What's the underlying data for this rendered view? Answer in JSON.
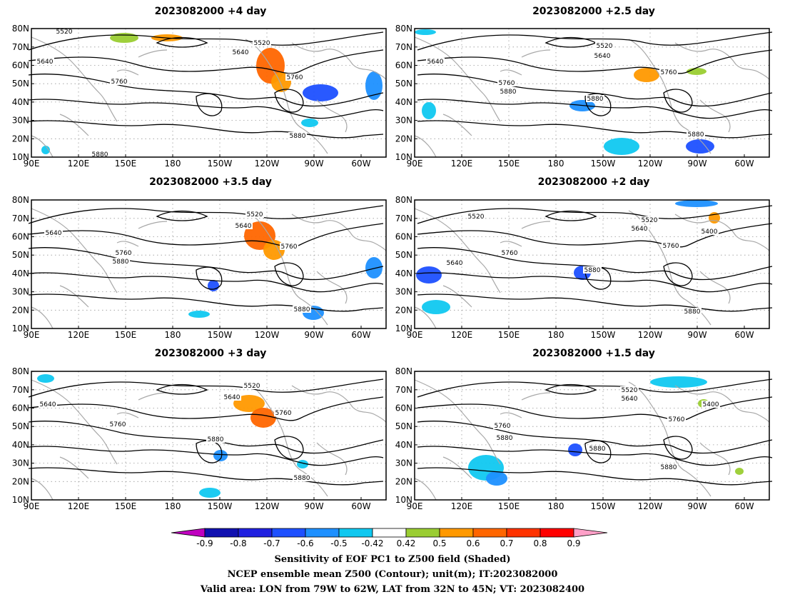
{
  "panels": [
    {
      "id": "p1",
      "title": "2023082000  +4 day"
    },
    {
      "id": "p2",
      "title": "2023082000  +2.5  day"
    },
    {
      "id": "p3",
      "title": "2023082000  +3.5  day"
    },
    {
      "id": "p4",
      "title": "2023082000  +2  day"
    },
    {
      "id": "p5",
      "title": "2023082000  +3  day"
    },
    {
      "id": "p6",
      "title": "2023082000  +1.5  day"
    }
  ],
  "lon_ticks": [
    "90E",
    "120E",
    "150E",
    "180",
    "150W",
    "120W",
    "90W",
    "60W"
  ],
  "lat_ticks": [
    "10N",
    "20N",
    "30N",
    "40N",
    "50N",
    "60N",
    "70N",
    "80N"
  ],
  "contour_labels": {
    "p1": [
      "5520",
      "5640",
      "5640",
      "5520",
      "5760",
      "5760",
      "5880",
      "5880"
    ],
    "p2": [
      "5640",
      "5520",
      "5640",
      "5760",
      "5880",
      "5760",
      "5880",
      "5880"
    ],
    "p3": [
      "5640",
      "5520",
      "5640",
      "5760",
      "5760",
      "5880",
      "5880"
    ],
    "p4": [
      "5520",
      "5520",
      "5640",
      "5400",
      "5760",
      "5760",
      "5640",
      "5880",
      "5880"
    ],
    "p5": [
      "5640",
      "5520",
      "5640",
      "5760",
      "5760",
      "5880",
      "5880"
    ],
    "p6": [
      "5520",
      "5640",
      "5400",
      "5760",
      "5760",
      "5880",
      "5880",
      "5880"
    ]
  },
  "colorbar": {
    "labels": [
      "-0.9",
      "-0.8",
      "-0.7",
      "-0.6",
      "-0.5",
      "-0.42",
      "0.42",
      "0.5",
      "0.6",
      "0.7",
      "0.8",
      "0.9"
    ],
    "colors": [
      "#c000c0",
      "#1010b0",
      "#2020e0",
      "#1e50ff",
      "#1e90ff",
      "#10c8f0",
      "#ffffff",
      "#9acd32",
      "#ff9900",
      "#ff6600",
      "#ff3300",
      "#ff0000",
      "#ffa0c8"
    ]
  },
  "caption": {
    "line1": "Sensitivity of EOF PC1 to Z500 field (Shaded)",
    "line2": "NCEP ensemble mean Z500 (Contour); unit(m); IT:2023082000",
    "line3": "Valid area: LON from 79W to 62W, LAT from 32N to 45N; VT: 2023082400"
  }
}
